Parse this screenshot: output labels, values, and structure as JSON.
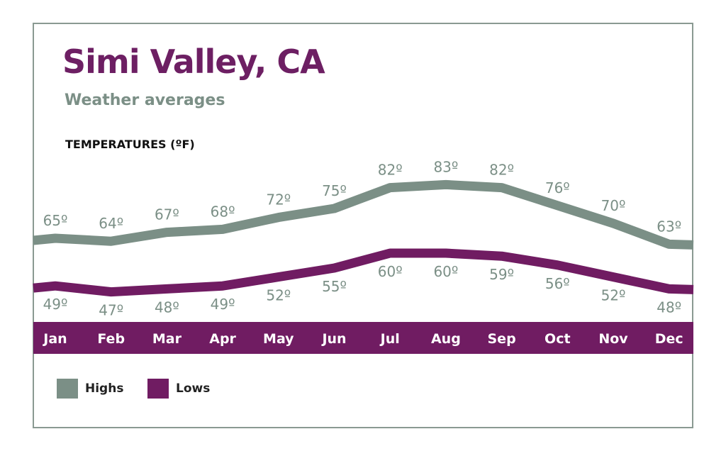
{
  "chart_data": {
    "type": "line",
    "title": "Simi Valley, CA",
    "subtitle": "Weather averages",
    "ylabel": "TEMPERATURES (ºF)",
    "categories": [
      "Jan",
      "Feb",
      "Mar",
      "Apr",
      "May",
      "Jun",
      "Jul",
      "Aug",
      "Sep",
      "Oct",
      "Nov",
      "Dec"
    ],
    "series": [
      {
        "name": "Highs",
        "color": "#7b8f86",
        "values": [
          65,
          64,
          67,
          68,
          72,
          75,
          82,
          83,
          82,
          76,
          70,
          63
        ]
      },
      {
        "name": "Lows",
        "color": "#701c62",
        "values": [
          49,
          47,
          48,
          49,
          52,
          55,
          60,
          60,
          59,
          56,
          52,
          48
        ]
      }
    ],
    "value_suffix": "º",
    "grid": false,
    "legend": "bottom-left",
    "band_color": "#701c62"
  }
}
